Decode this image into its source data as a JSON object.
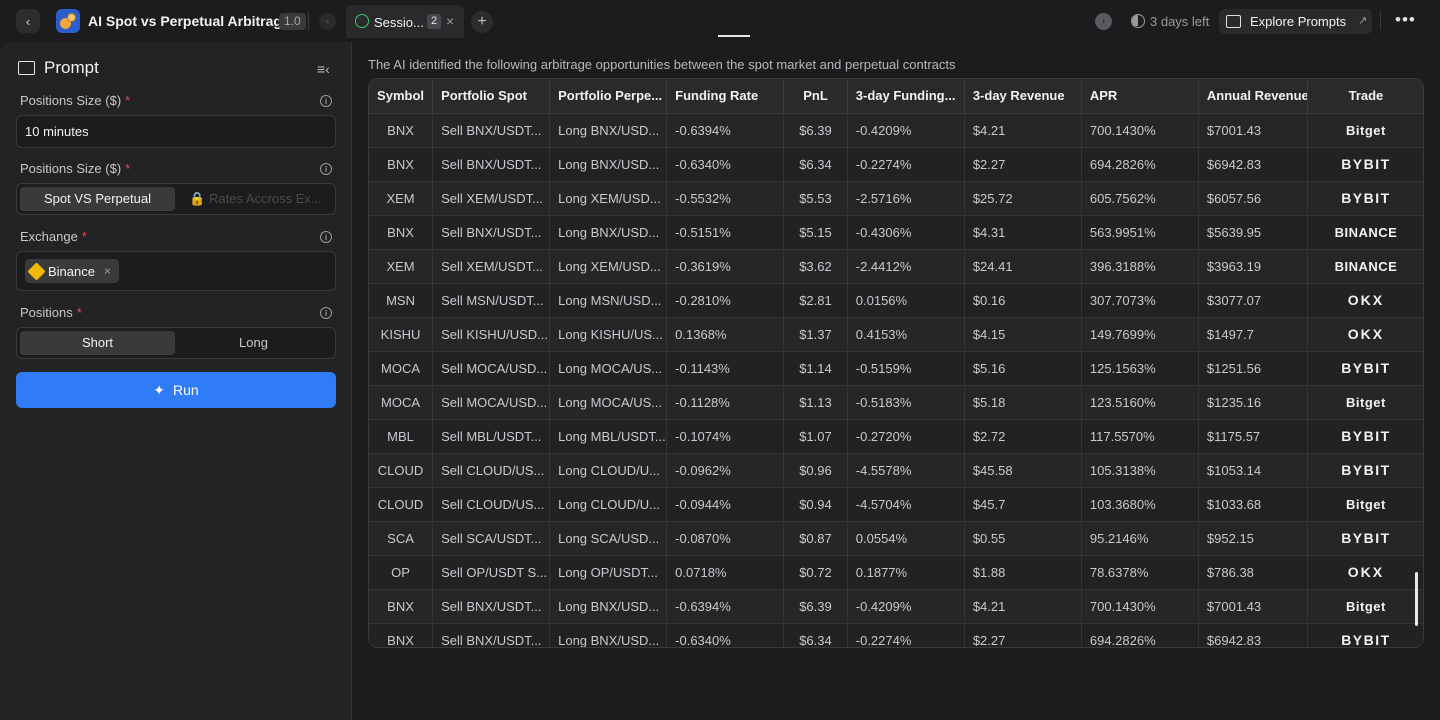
{
  "header": {
    "app_title": "AI Spot vs Perpetual Arbitrage",
    "version": "1.0",
    "session_tab_label": "Sessio...",
    "session_count": "2",
    "days_left": "3 days  left",
    "explore_label": "Explore Prompts"
  },
  "prompt_panel": {
    "title": "Prompt",
    "positions_size_label_1": "Positions Size ($)",
    "positions_size_value_1": "10 minutes",
    "positions_size_label_2": "Positions Size ($)",
    "mode_options": [
      "Spot VS Perpetual",
      "Rates Accross Ex..."
    ],
    "exchange_label": "Exchange",
    "exchange_chip": "Binance",
    "positions_label": "Positions",
    "position_options": [
      "Short",
      "Long"
    ],
    "run_label": "Run"
  },
  "main": {
    "intro": "The AI identified the following arbitrage opportunities between the spot market and perpetual contracts",
    "columns": [
      "Symbol",
      "Portfolio Spot",
      "Portfolio Perpe...",
      "Funding Rate",
      "PnL",
      "3-day Funding...",
      "3-day Revenue",
      "APR",
      "Annual Revenue",
      "Trade"
    ],
    "rows": [
      [
        "BNX",
        "Sell BNX/USDT...",
        "Long BNX/USD...",
        "-0.6394%",
        "$6.39",
        "-0.4209%",
        "$4.21",
        "700.1430%",
        "$7001.43",
        "Bitget"
      ],
      [
        "BNX",
        "Sell BNX/USDT...",
        "Long BNX/USD...",
        "-0.6340%",
        "$6.34",
        "-0.2274%",
        "$2.27",
        "694.2826%",
        "$6942.83",
        "BYBIT"
      ],
      [
        "XEM",
        "Sell XEM/USDT...",
        "Long XEM/USD...",
        "-0.5532%",
        "$5.53",
        "-2.5716%",
        "$25.72",
        "605.7562%",
        "$6057.56",
        "BYBIT"
      ],
      [
        "BNX",
        "Sell BNX/USDT...",
        "Long BNX/USD...",
        "-0.5151%",
        "$5.15",
        "-0.4306%",
        "$4.31",
        "563.9951%",
        "$5639.95",
        "BINANCE"
      ],
      [
        "XEM",
        "Sell XEM/USDT...",
        "Long XEM/USD...",
        "-0.3619%",
        "$3.62",
        "-2.4412%",
        "$24.41",
        "396.3188%",
        "$3963.19",
        "BINANCE"
      ],
      [
        "MSN",
        "Sell MSN/USDT...",
        "Long MSN/USD...",
        "-0.2810%",
        "$2.81",
        "0.0156%",
        "$0.16",
        "307.7073%",
        "$3077.07",
        "OKX"
      ],
      [
        "KISHU",
        "Sell KISHU/USD...",
        "Long KISHU/US...",
        "0.1368%",
        "$1.37",
        "0.4153%",
        "$4.15",
        "149.7699%",
        "$1497.7",
        "OKX"
      ],
      [
        "MOCA",
        "Sell MOCA/USD...",
        "Long MOCA/US...",
        "-0.1143%",
        "$1.14",
        "-0.5159%",
        "$5.16",
        "125.1563%",
        "$1251.56",
        "BYBIT"
      ],
      [
        "MOCA",
        "Sell MOCA/USD...",
        "Long MOCA/US...",
        "-0.1128%",
        "$1.13",
        "-0.5183%",
        "$5.18",
        "123.5160%",
        "$1235.16",
        "Bitget"
      ],
      [
        "MBL",
        "Sell MBL/USDT...",
        "Long MBL/USDT...",
        "-0.1074%",
        "$1.07",
        "-0.2720%",
        "$2.72",
        "117.5570%",
        "$1175.57",
        "BYBIT"
      ],
      [
        "CLOUD",
        "Sell CLOUD/US...",
        "Long CLOUD/U...",
        "-0.0962%",
        "$0.96",
        "-4.5578%",
        "$45.58",
        "105.3138%",
        "$1053.14",
        "BYBIT"
      ],
      [
        "CLOUD",
        "Sell CLOUD/US...",
        "Long CLOUD/U...",
        "-0.0944%",
        "$0.94",
        "-4.5704%",
        "$45.7",
        "103.3680%",
        "$1033.68",
        "Bitget"
      ],
      [
        "SCA",
        "Sell SCA/USDT...",
        "Long SCA/USD...",
        "-0.0870%",
        "$0.87",
        "0.0554%",
        "$0.55",
        "95.2146%",
        "$952.15",
        "BYBIT"
      ],
      [
        "OP",
        "Sell OP/USDT S...",
        "Long OP/USDT...",
        "0.0718%",
        "$0.72",
        "0.1877%",
        "$1.88",
        "78.6378%",
        "$786.38",
        "OKX"
      ],
      [
        "BNX",
        "Sell BNX/USDT...",
        "Long BNX/USD...",
        "-0.6394%",
        "$6.39",
        "-0.4209%",
        "$4.21",
        "700.1430%",
        "$7001.43",
        "Bitget"
      ],
      [
        "BNX",
        "Sell BNX/USDT...",
        "Long BNX/USD...",
        "-0.6340%",
        "$6.34",
        "-0.2274%",
        "$2.27",
        "694.2826%",
        "$6942.83",
        "BYBIT"
      ]
    ]
  },
  "colors": {
    "accent": "#2f7cf6",
    "required": "#e84a4a",
    "success": "#3ec46d"
  }
}
